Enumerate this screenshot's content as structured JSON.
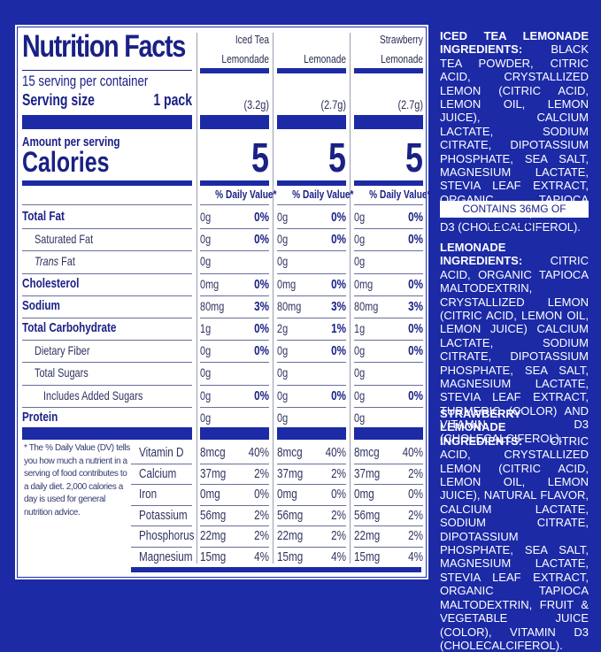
{
  "label": {
    "title": "Nutrition Facts",
    "servings_per_container": "15 serving per container",
    "serving_size_label": "Serving size",
    "serving_size_value": "1 pack",
    "amount_per_serving": "Amount per serving",
    "calories_label": "Calories",
    "columns": [
      {
        "name_line1": "Iced Tea",
        "name_line2": "Lemondade",
        "serving_weight": "(3.2g)",
        "calories": "5",
        "dv_header": "% Daily Value*"
      },
      {
        "name_line1": "",
        "name_line2": "Lemonade",
        "serving_weight": "(2.7g)",
        "calories": "5",
        "dv_header": "% Daily Value*"
      },
      {
        "name_line1": "Strawberry",
        "name_line2": "Lemonade",
        "serving_weight": "(2.7g)",
        "calories": "5",
        "dv_header": "% Daily Value*"
      }
    ],
    "nutrients": [
      {
        "name": "Total Fat",
        "bold": true,
        "indent": 0,
        "values": [
          [
            "0g",
            "0%"
          ],
          [
            "0g",
            "0%"
          ],
          [
            "0g",
            "0%"
          ]
        ]
      },
      {
        "name": "Saturated Fat",
        "bold": false,
        "indent": 1,
        "values": [
          [
            "0g",
            "0%"
          ],
          [
            "0g",
            "0%"
          ],
          [
            "0g",
            "0%"
          ]
        ]
      },
      {
        "name_italic": "Trans",
        "name": " Fat",
        "bold": false,
        "indent": 1,
        "values": [
          [
            "0g",
            ""
          ],
          [
            "0g",
            ""
          ],
          [
            "0g",
            ""
          ]
        ]
      },
      {
        "name": "Cholesterol",
        "bold": true,
        "indent": 0,
        "values": [
          [
            "0mg",
            "0%"
          ],
          [
            "0mg",
            "0%"
          ],
          [
            "0mg",
            "0%"
          ]
        ]
      },
      {
        "name": "Sodium",
        "bold": true,
        "indent": 0,
        "values": [
          [
            "80mg",
            "3%"
          ],
          [
            "80mg",
            "3%"
          ],
          [
            "80mg",
            "3%"
          ]
        ]
      },
      {
        "name": "Total Carbohydrate",
        "bold": true,
        "indent": 0,
        "values": [
          [
            "1g",
            "0%"
          ],
          [
            "2g",
            "1%"
          ],
          [
            "1g",
            "0%"
          ]
        ]
      },
      {
        "name": "Dietary Fiber",
        "bold": false,
        "indent": 1,
        "values": [
          [
            "0g",
            "0%"
          ],
          [
            "0g",
            "0%"
          ],
          [
            "0g",
            "0%"
          ]
        ]
      },
      {
        "name": "Total Sugars",
        "bold": false,
        "indent": 1,
        "values": [
          [
            "0g",
            ""
          ],
          [
            "0g",
            ""
          ],
          [
            "0g",
            ""
          ]
        ]
      },
      {
        "name": "Includes Added Sugars",
        "bold": false,
        "indent": 2,
        "values": [
          [
            "0g",
            "0%"
          ],
          [
            "0g",
            "0%"
          ],
          [
            "0g",
            "0%"
          ]
        ]
      },
      {
        "name": "Protein",
        "bold": true,
        "indent": 0,
        "values": [
          [
            "0g",
            ""
          ],
          [
            "0g",
            ""
          ],
          [
            "0g",
            ""
          ]
        ]
      }
    ],
    "footnote": "* The % Daily Value (DV) tells you how much a nutrient in a serving of food contributes to a daily diet. 2,000 calories a day is used for general nutrition advice.",
    "vitamins": [
      {
        "name": "Vitamin D",
        "values": [
          [
            "8mcg",
            "40%"
          ],
          [
            "8mcg",
            "40%"
          ],
          [
            "8mcg",
            "40%"
          ]
        ]
      },
      {
        "name": "Calcium",
        "values": [
          [
            "37mg",
            "2%"
          ],
          [
            "37mg",
            "2%"
          ],
          [
            "37mg",
            "2%"
          ]
        ]
      },
      {
        "name": "Iron",
        "values": [
          [
            "0mg",
            "0%"
          ],
          [
            "0mg",
            "0%"
          ],
          [
            "0mg",
            "0%"
          ]
        ]
      },
      {
        "name": "Potassium",
        "values": [
          [
            "56mg",
            "2%"
          ],
          [
            "56mg",
            "2%"
          ],
          [
            "56mg",
            "2%"
          ]
        ]
      },
      {
        "name": "Phosphorus",
        "values": [
          [
            "22mg",
            "2%"
          ],
          [
            "22mg",
            "2%"
          ],
          [
            "22mg",
            "2%"
          ]
        ]
      },
      {
        "name": "Magnesium",
        "values": [
          [
            "15mg",
            "4%"
          ],
          [
            "15mg",
            "4%"
          ],
          [
            "15mg",
            "4%"
          ]
        ]
      }
    ]
  },
  "ingredients": {
    "iced_tea": {
      "heading": "Iced Tea Lemonade Ingredients:",
      "text": "Black Tea Powder, Citric Acid, Crystallized Lemon (Citric Acid, Lemon Oil, Lemon Juice), Calcium Lactate, Sodium Citrate, Dipotassium Phosphate, Sea Salt, Magnesium Lactate, Stevia Leaf Extract, Organic Tapioca Maltodextrin, Vitamin D3 (Cholecalciferol)."
    },
    "caffeine_note": "CONTAINS 36MG OF CAFFEINE",
    "lemonade": {
      "heading": "Lemonade Ingredients:",
      "text": "Citric Acid, Organic Tapioca Maltodextrin, Crystallized Lemon (Citric Acid, Lemon Oil, Lemon Juice) Calcium Lactate, Sodium Citrate, Dipotassium Phosphate, Sea Salt, Magnesium Lactate, Stevia Leaf Extract, Turmeric (Color) and Vitamin D3 (Cholecalciferol)."
    },
    "strawberry": {
      "heading": "Strawberry Lemonade Ingredients:",
      "text": "Citric Acid, Crystallized Lemon (Citric Acid, Lemon Oil, Lemon Juice), Natural Flavor, Calcium Lactate, Sodium Citrate, Dipotassium Phosphate, Sea Salt, Magnesium Lactate, Stevia Leaf Extract, Organic Tapioca Maltodextrin, Fruit & Vegetable Juice (Color), Vitamin D3 (Cholecalciferol)."
    }
  },
  "colors": {
    "background": "#1c2aa6",
    "text_navy": "#1a2185",
    "panel": "#ffffff"
  }
}
